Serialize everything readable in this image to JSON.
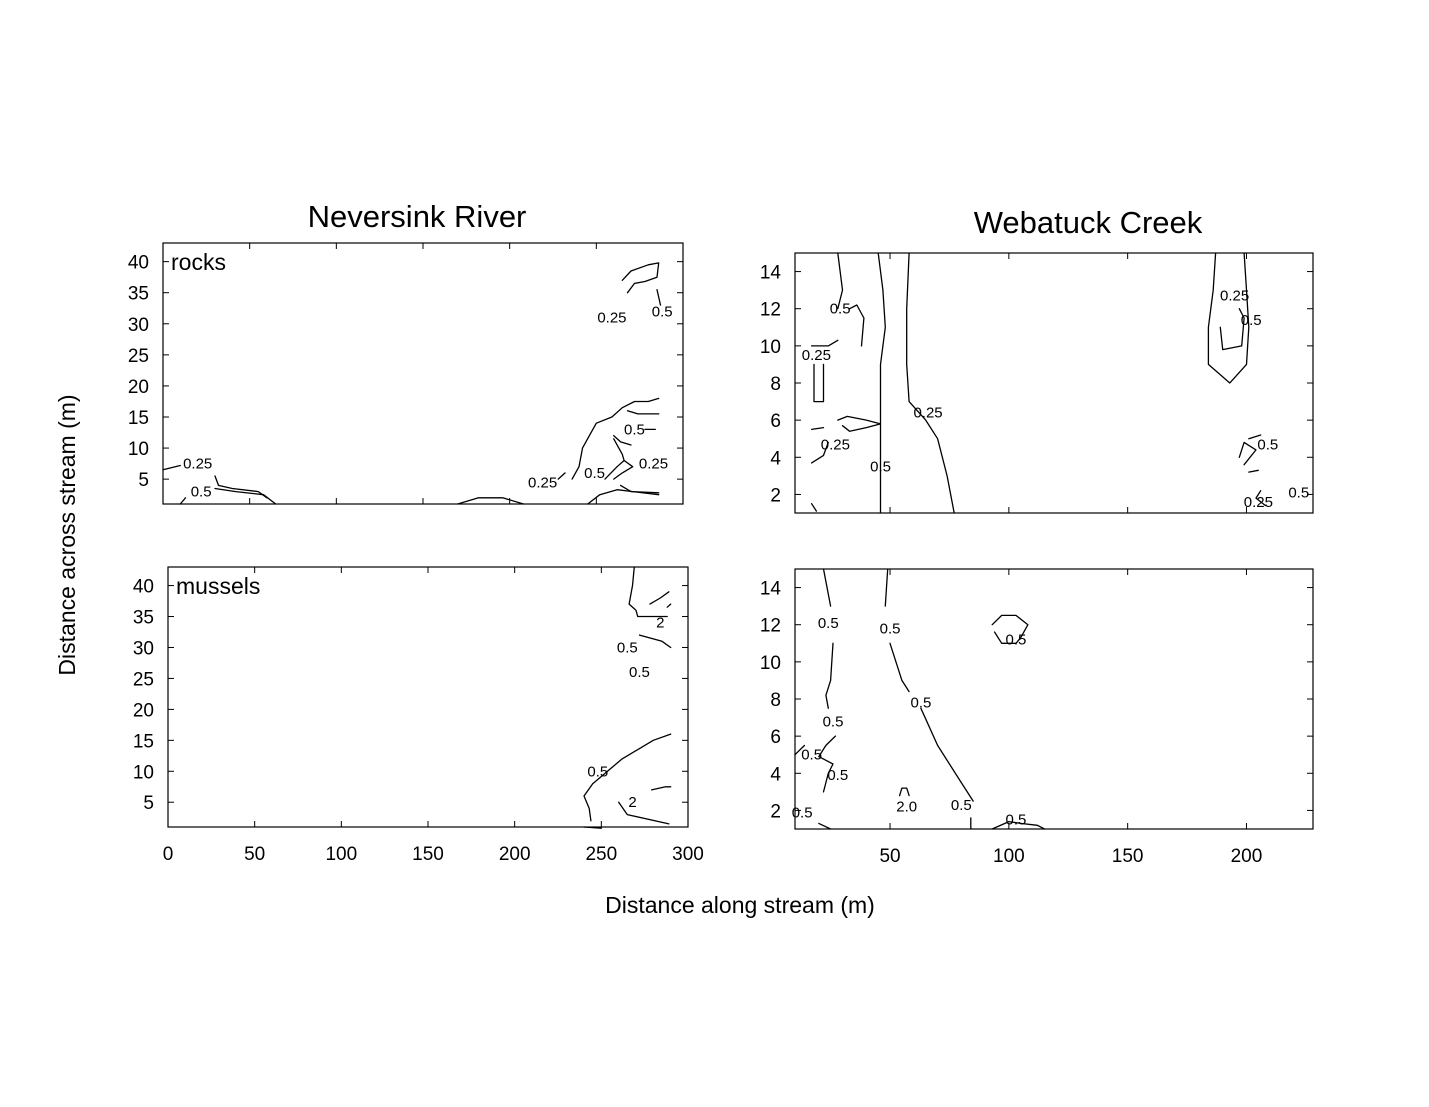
{
  "figure": {
    "xlabel": "Distance along stream (m)",
    "ylabel": "Distance across stream (m)"
  },
  "chart_data": [
    {
      "type": "contour",
      "column_title": "Neversink River",
      "panel_label": "rocks",
      "xlim": [
        0,
        300
      ],
      "ylim": [
        1,
        43
      ],
      "xticks": [
        0,
        50,
        100,
        150,
        200,
        250,
        300
      ],
      "yticks": [
        5,
        10,
        15,
        20,
        25,
        30,
        35,
        40
      ],
      "show_xticklabels": false,
      "contour_labels": [
        {
          "text": "0.25",
          "x": 20,
          "y": 7.5
        },
        {
          "text": "0.5",
          "x": 22,
          "y": 3
        },
        {
          "text": "0.25",
          "x": 259,
          "y": 31
        },
        {
          "text": "0.5",
          "x": 288,
          "y": 32
        },
        {
          "text": "0.5",
          "x": 272,
          "y": 13
        },
        {
          "text": "0.25",
          "x": 283,
          "y": 7.5
        },
        {
          "text": "0.5",
          "x": 249,
          "y": 6
        },
        {
          "text": "0.25",
          "x": 219,
          "y": 4.5
        }
      ],
      "contour_lines": [
        [
          [
            0,
            6.5
          ],
          [
            10,
            7.2
          ]
        ],
        [
          [
            30,
            5.5
          ],
          [
            32,
            4
          ],
          [
            40,
            3.5
          ],
          [
            55,
            3
          ],
          [
            60,
            2
          ]
        ],
        [
          [
            10,
            1
          ],
          [
            13,
            2
          ]
        ],
        [
          [
            30,
            3.5
          ],
          [
            42,
            3
          ],
          [
            58,
            2.5
          ],
          [
            65,
            1
          ]
        ],
        [
          [
            170,
            1
          ],
          [
            182,
            2
          ],
          [
            196,
            2
          ],
          [
            208,
            1
          ]
        ],
        [
          [
            265,
            37
          ],
          [
            270,
            38.5
          ],
          [
            280,
            39.5
          ],
          [
            286,
            39.8
          ],
          [
            285,
            37.5
          ],
          [
            278,
            36.8
          ],
          [
            272,
            36.5
          ],
          [
            268,
            35
          ]
        ],
        [
          [
            285,
            35.5
          ],
          [
            287,
            33
          ]
        ],
        [
          [
            236,
            5
          ],
          [
            240,
            7
          ],
          [
            242,
            10
          ],
          [
            246,
            12
          ],
          [
            250,
            14
          ],
          [
            259,
            15
          ],
          [
            265,
            16.5
          ],
          [
            272,
            17.5
          ],
          [
            280,
            17.5
          ],
          [
            286,
            18
          ]
        ],
        [
          [
            268,
            16
          ],
          [
            274,
            15.5
          ],
          [
            286,
            15.5
          ]
        ],
        [
          [
            260,
            12
          ],
          [
            264,
            11
          ],
          [
            270,
            10.5
          ]
        ],
        [
          [
            278,
            13
          ],
          [
            284,
            13
          ]
        ],
        [
          [
            255,
            5
          ],
          [
            262,
            7
          ],
          [
            266,
            8
          ],
          [
            271,
            7
          ],
          [
            265,
            6
          ],
          [
            260,
            5
          ]
        ],
        [
          [
            245,
            1
          ],
          [
            252,
            2.5
          ],
          [
            262,
            3.3
          ],
          [
            286,
            2.5
          ]
        ],
        [
          [
            264,
            4
          ],
          [
            270,
            3
          ],
          [
            286,
            2.8
          ]
        ],
        [
          [
            228,
            5
          ],
          [
            232,
            6
          ]
        ],
        [
          [
            260,
            11.5
          ],
          [
            265,
            9
          ],
          [
            266,
            8
          ]
        ]
      ]
    },
    {
      "type": "contour",
      "column_title": "Webatuck Creek",
      "xlim": [
        10,
        228
      ],
      "ylim": [
        1,
        15
      ],
      "xticks": [
        50,
        100,
        150,
        200
      ],
      "yticks": [
        2,
        4,
        6,
        8,
        10,
        12,
        14
      ],
      "show_xticklabels": false,
      "contour_labels": [
        {
          "text": "0.5",
          "x": 29,
          "y": 12
        },
        {
          "text": "0.25",
          "x": 19,
          "y": 9.5
        },
        {
          "text": "0.25",
          "x": 66,
          "y": 6.4
        },
        {
          "text": "0.25",
          "x": 27,
          "y": 4.7
        },
        {
          "text": "0.5",
          "x": 46,
          "y": 3.5
        },
        {
          "text": "0.25",
          "x": 195,
          "y": 12.7
        },
        {
          "text": "0.5",
          "x": 202,
          "y": 11.4
        },
        {
          "text": "0.5",
          "x": 209,
          "y": 4.7
        },
        {
          "text": "0.5",
          "x": 222,
          "y": 2.1
        },
        {
          "text": "0.25",
          "x": 205,
          "y": 1.6
        }
      ],
      "contour_lines": [
        [
          [
            28,
            15
          ],
          [
            30,
            13
          ],
          [
            28,
            12
          ]
        ],
        [
          [
            45,
            15
          ],
          [
            47,
            13
          ],
          [
            48,
            11
          ],
          [
            46,
            9
          ],
          [
            46,
            7
          ],
          [
            46,
            5.5
          ],
          [
            46,
            4.5
          ],
          [
            46,
            1
          ]
        ],
        [
          [
            33,
            12
          ],
          [
            36,
            12.2
          ],
          [
            39,
            11.5
          ],
          [
            38,
            10
          ]
        ],
        [
          [
            58,
            15
          ],
          [
            57,
            12
          ],
          [
            57,
            9
          ],
          [
            58,
            7
          ],
          [
            65,
            6
          ],
          [
            70,
            5
          ],
          [
            74,
            3
          ],
          [
            77,
            1
          ]
        ],
        [
          [
            17,
            10
          ],
          [
            24,
            10
          ],
          [
            28,
            10.3
          ]
        ],
        [
          [
            18,
            9
          ],
          [
            18,
            7
          ],
          [
            22,
            7
          ],
          [
            22,
            9
          ]
        ],
        [
          [
            28,
            6
          ],
          [
            32,
            6.2
          ],
          [
            40,
            6
          ],
          [
            46,
            5.8
          ],
          [
            40,
            5.6
          ],
          [
            33,
            5.4
          ],
          [
            30,
            5.7
          ]
        ],
        [
          [
            17,
            5.5
          ],
          [
            22,
            5.6
          ]
        ],
        [
          [
            17,
            3.7
          ],
          [
            22,
            4.1
          ],
          [
            24,
            4.8
          ]
        ],
        [
          [
            17,
            1.5
          ],
          [
            19,
            1.1
          ]
        ],
        [
          [
            187,
            15
          ],
          [
            186,
            13
          ],
          [
            184,
            11
          ],
          [
            184,
            9
          ],
          [
            193,
            8
          ],
          [
            200,
            9
          ],
          [
            201,
            11
          ],
          [
            200,
            13
          ],
          [
            199,
            15
          ]
        ],
        [
          [
            197,
            12
          ],
          [
            199,
            11.5
          ],
          [
            198,
            10
          ],
          [
            190,
            9.8
          ],
          [
            189,
            11
          ]
        ],
        [
          [
            201,
            5
          ],
          [
            206,
            5.2
          ]
        ],
        [
          [
            197,
            4
          ],
          [
            199,
            4.8
          ],
          [
            204,
            4.4
          ],
          [
            199,
            3.6
          ]
        ],
        [
          [
            201,
            3.2
          ],
          [
            205,
            3.3
          ]
        ],
        [
          [
            206,
            2.2
          ],
          [
            204,
            1.8
          ],
          [
            208,
            1.4
          ]
        ]
      ]
    },
    {
      "type": "contour",
      "panel_label": "mussels",
      "xlim": [
        0,
        300
      ],
      "ylim": [
        1,
        43
      ],
      "xticks": [
        0,
        50,
        100,
        150,
        200,
        250,
        300
      ],
      "yticks": [
        5,
        10,
        15,
        20,
        25,
        30,
        35,
        40
      ],
      "show_xticklabels": true,
      "contour_labels": [
        {
          "text": "2",
          "x": 284,
          "y": 34
        },
        {
          "text": "0.5",
          "x": 265,
          "y": 30
        },
        {
          "text": "0.5",
          "x": 272,
          "y": 26
        },
        {
          "text": "0.5",
          "x": 248,
          "y": 10
        },
        {
          "text": "2",
          "x": 268,
          "y": 5
        }
      ],
      "contour_lines": [
        [
          [
            269,
            43
          ],
          [
            268,
            40
          ],
          [
            266,
            37
          ],
          [
            270,
            36
          ],
          [
            271,
            35
          ],
          [
            288,
            35
          ]
        ],
        [
          [
            278,
            37
          ],
          [
            284,
            38
          ],
          [
            289,
            39
          ]
        ],
        [
          [
            290,
            37
          ],
          [
            288,
            36.5
          ]
        ],
        [
          [
            272,
            32
          ],
          [
            285,
            31
          ],
          [
            290,
            30
          ]
        ],
        [
          [
            244,
            2
          ],
          [
            243,
            4
          ],
          [
            240,
            6
          ],
          [
            245,
            8
          ],
          [
            262,
            12
          ],
          [
            280,
            15
          ],
          [
            290,
            16
          ]
        ],
        [
          [
            240,
            1
          ],
          [
            250,
            0.8
          ]
        ],
        [
          [
            279,
            7
          ],
          [
            287,
            7.5
          ],
          [
            290,
            7.5
          ]
        ],
        [
          [
            260,
            5
          ],
          [
            265,
            3
          ],
          [
            289,
            1.5
          ]
        ]
      ]
    },
    {
      "type": "contour",
      "xlim": [
        10,
        228
      ],
      "ylim": [
        1,
        15
      ],
      "xticks": [
        50,
        100,
        150,
        200
      ],
      "yticks": [
        2,
        4,
        6,
        8,
        10,
        12,
        14
      ],
      "show_xticklabels": true,
      "contour_labels": [
        {
          "text": "0.5",
          "x": 24,
          "y": 12.1
        },
        {
          "text": "0.5",
          "x": 50,
          "y": 11.8
        },
        {
          "text": "0.5",
          "x": 103,
          "y": 11.2
        },
        {
          "text": "0.5",
          "x": 63,
          "y": 7.8
        },
        {
          "text": "0.5",
          "x": 26,
          "y": 6.8
        },
        {
          "text": "0.5",
          "x": 17,
          "y": 5
        },
        {
          "text": "0.5",
          "x": 28,
          "y": 3.9
        },
        {
          "text": "2.0",
          "x": 57,
          "y": 2.2
        },
        {
          "text": "0.5",
          "x": 80,
          "y": 2.3
        },
        {
          "text": "0.5",
          "x": 13,
          "y": 1.9
        },
        {
          "text": "0.5",
          "x": 103,
          "y": 1.5
        }
      ],
      "contour_lines": [
        [
          [
            22,
            15
          ],
          [
            25,
            13
          ]
        ],
        [
          [
            26,
            11
          ],
          [
            25,
            9
          ],
          [
            23,
            8.2
          ],
          [
            24,
            7.5
          ]
        ],
        [
          [
            27,
            6
          ],
          [
            23,
            5.5
          ],
          [
            20,
            4.9
          ],
          [
            26,
            4.5
          ],
          [
            24,
            4
          ],
          [
            22,
            3
          ]
        ],
        [
          [
            10,
            5
          ],
          [
            14,
            5.5
          ]
        ],
        [
          [
            20,
            1.3
          ],
          [
            25,
            1
          ]
        ],
        [
          [
            49,
            15
          ],
          [
            48,
            13
          ]
        ],
        [
          [
            50,
            11
          ],
          [
            55,
            9
          ],
          [
            58,
            8.4
          ]
        ],
        [
          [
            63,
            7.5
          ],
          [
            70,
            5.5
          ],
          [
            80,
            3.5
          ],
          [
            85,
            2.5
          ]
        ],
        [
          [
            84,
            1.6
          ],
          [
            84,
            1
          ]
        ],
        [
          [
            54,
            2.8
          ],
          [
            55,
            3.2
          ],
          [
            57,
            3.2
          ],
          [
            58,
            2.8
          ]
        ],
        [
          [
            93,
            12
          ],
          [
            97,
            12.5
          ],
          [
            103,
            12.5
          ],
          [
            108,
            12
          ],
          [
            105,
            11.3
          ],
          [
            103,
            11
          ],
          [
            97,
            11
          ],
          [
            94,
            11.6
          ]
        ],
        [
          [
            93,
            1
          ],
          [
            100,
            1.4
          ],
          [
            105,
            1.3
          ],
          [
            112,
            1.2
          ],
          [
            115,
            1
          ]
        ]
      ]
    }
  ]
}
